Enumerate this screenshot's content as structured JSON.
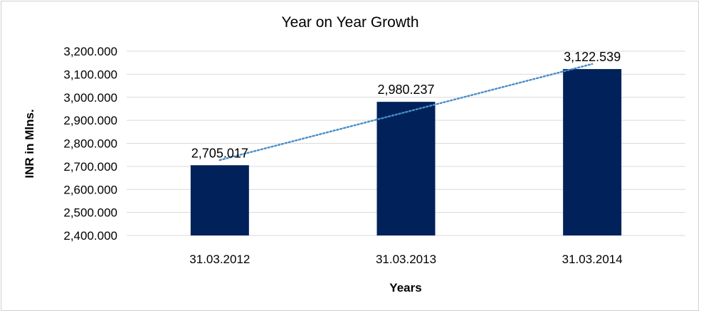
{
  "chart_data": {
    "type": "bar",
    "title": "Year on Year Growth",
    "xlabel": "Years",
    "ylabel": "INR in Mlns.",
    "categories": [
      "31.03.2012",
      "31.03.2013",
      "31.03.2014"
    ],
    "values": [
      2705.017,
      2980.237,
      3122.539
    ],
    "value_labels": [
      "2,705.017",
      "2,980.237",
      "3,122.539"
    ],
    "ylim": [
      2400,
      3200
    ],
    "yticks": [
      2400,
      2500,
      2600,
      2700,
      2800,
      2900,
      3000,
      3100,
      3200
    ],
    "ytick_labels": [
      "2,400.000",
      "2,500.000",
      "2,600.000",
      "2,700.000",
      "2,800.000",
      "2,900.000",
      "3,000.000",
      "3,100.000",
      "3,200.000"
    ],
    "grid": true,
    "legend": "none",
    "trendline": "linear",
    "bar_color": "#00215a",
    "trendline_color": "#4a8ec8",
    "grid_color": "#d9d9d9"
  }
}
